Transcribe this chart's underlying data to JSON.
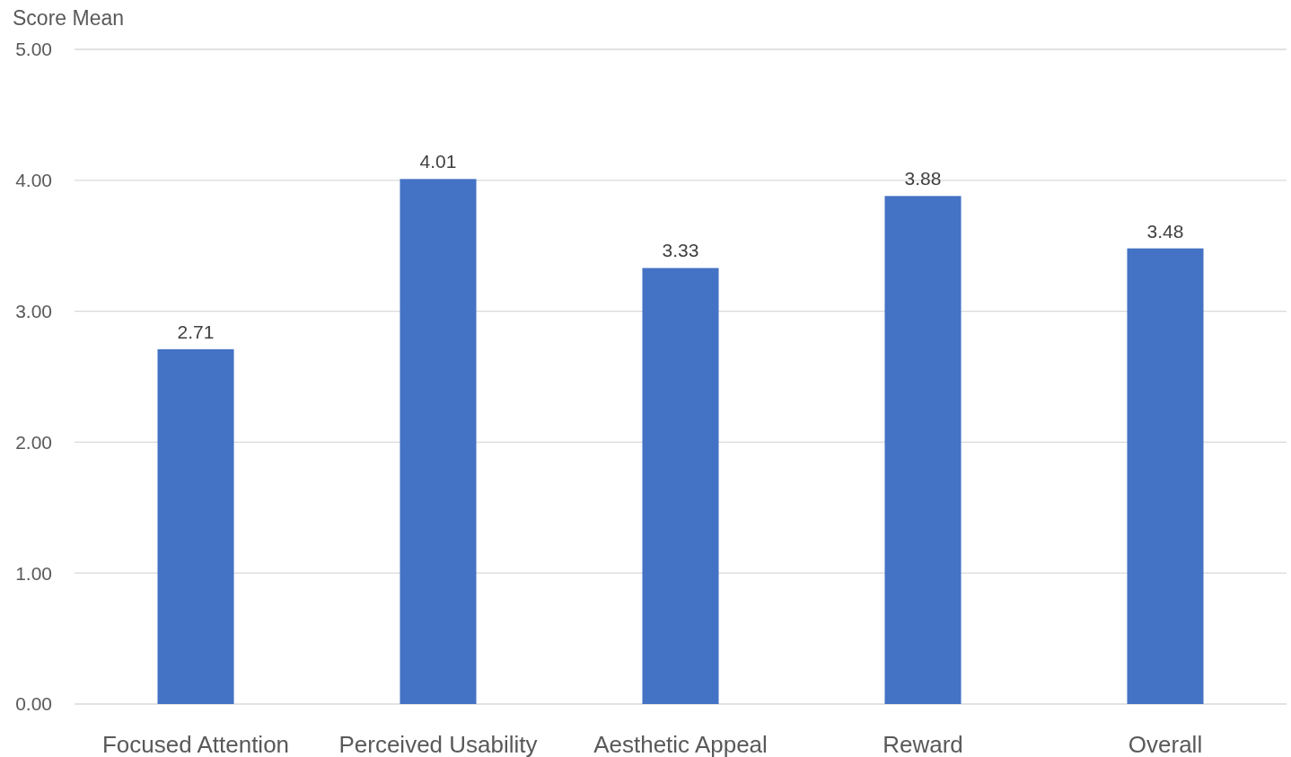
{
  "chart_data": {
    "type": "bar",
    "ylabel": "Score Mean",
    "categories": [
      "Focused Attention",
      "Perceived Usability",
      "Aesthetic Appeal",
      "Reward",
      "Overall"
    ],
    "values": [
      2.71,
      4.01,
      3.33,
      3.88,
      3.48
    ],
    "color": "#4472c4",
    "ylim": [
      0,
      5
    ],
    "yticks": [
      {
        "value": 0,
        "label": "0.00"
      },
      {
        "value": 1,
        "label": "1.00"
      },
      {
        "value": 2,
        "label": "2.00"
      },
      {
        "value": 3,
        "label": "3.00"
      },
      {
        "value": 4,
        "label": "4.00"
      },
      {
        "value": 5,
        "label": "5.00"
      }
    ],
    "grid": "y",
    "data_labels": true
  }
}
